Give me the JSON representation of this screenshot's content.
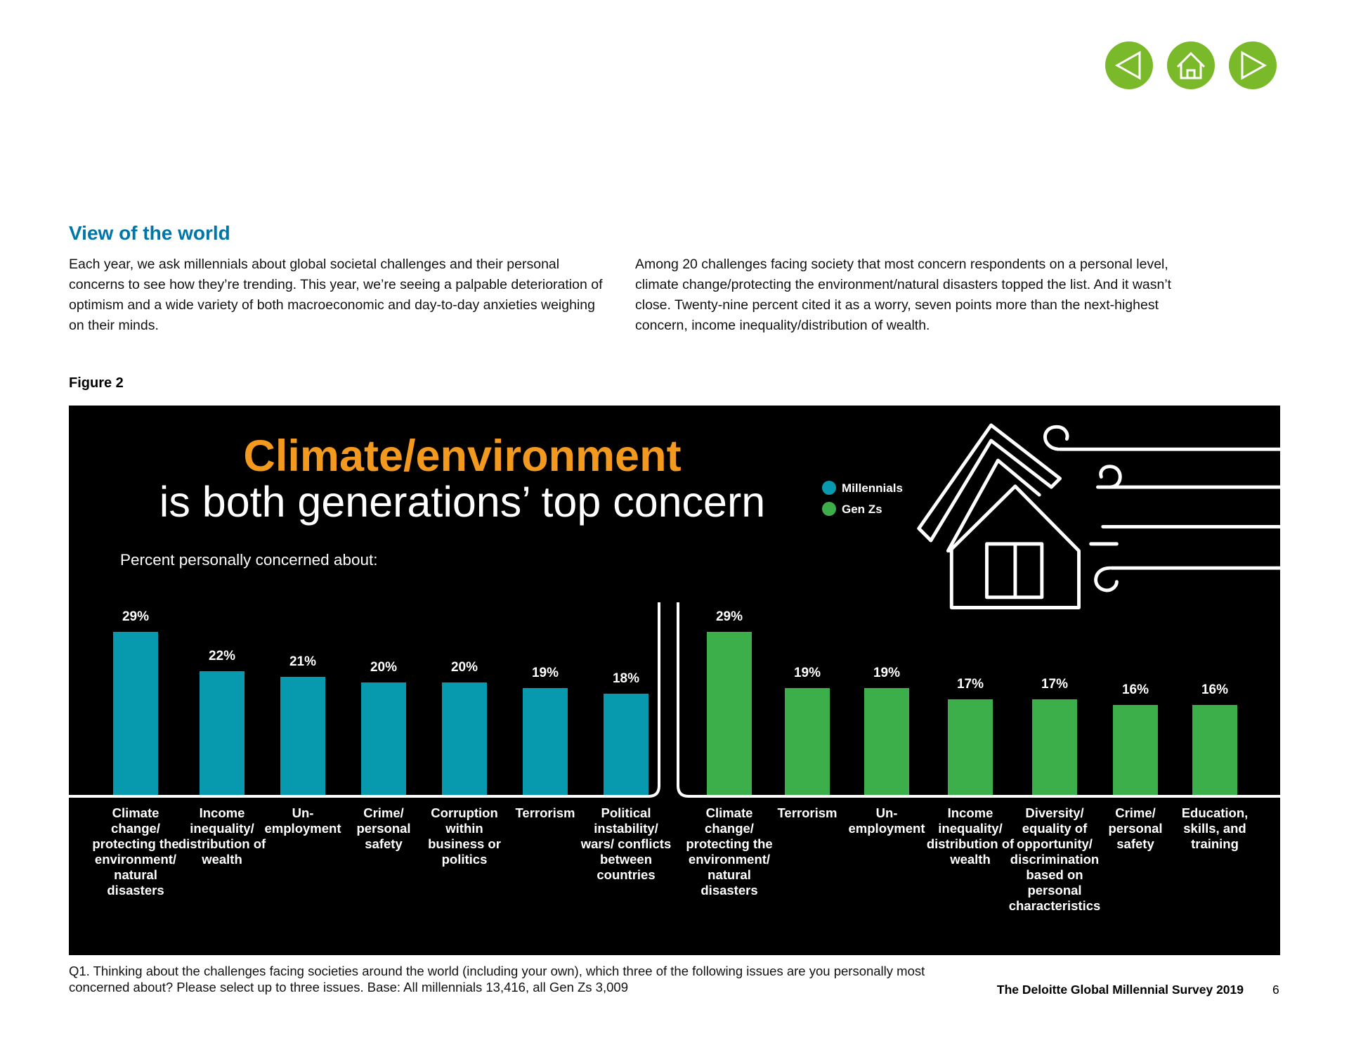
{
  "section": {
    "title": "View of the world",
    "paragraphs": [
      "Each year, we ask millennials about global societal challenges and their personal concerns to see how they’re trending. This year, we’re seeing a palpable deterioration of optimism and a wide variety of both macroeconomic and day-to-day anxieties weighing on their minds.",
      "Among 20 challenges facing society that most concern respondents on a personal level, climate change/protecting the environment/natural disasters topped the list. And it wasn’t close. Twenty-nine percent cited it as a worry, seven points more than the next-highest concern, income inequality/distribution of wealth."
    ]
  },
  "figure_label": "Figure 2",
  "chart_data": [
    {
      "type": "bar",
      "title": "Climate/environment",
      "subtitle": "is both generations’ top concern",
      "y_label": "Percent personally concerned about:",
      "categories": [
        "Climate change/ protecting the environment/ natural disasters",
        "Income inequality/ distribution of wealth",
        "Un- employment",
        "Crime/ personal safety",
        "Corruption within business or politics",
        "Terrorism",
        "Political instability/ wars/ conflicts between countries"
      ],
      "series": [
        {
          "name": "Millennials",
          "color": "#0799ae",
          "values": [
            29,
            22,
            21,
            20,
            20,
            19,
            18
          ],
          "value_labels": [
            "29%",
            "22%",
            "21%",
            "20%",
            "20%",
            "19%",
            "18%"
          ]
        }
      ]
    },
    {
      "type": "bar",
      "categories": [
        "Climate change/ protecting the environment/ natural disasters",
        "Terrorism",
        "Un- employment",
        "Income inequality/ distribution of wealth",
        "Diversity/ equality of opportunity/ discrimination based on personal characteristics",
        "Crime/ personal safety",
        "Education, skills, and training"
      ],
      "series": [
        {
          "name": "Gen Zs",
          "color": "#3daf4a",
          "values": [
            29,
            19,
            19,
            17,
            17,
            16,
            16
          ],
          "value_labels": [
            "29%",
            "19%",
            "19%",
            "17%",
            "17%",
            "16%",
            "16%"
          ]
        }
      ]
    }
  ],
  "footnote": "Q1. Thinking about the challenges facing societies around the world (including your own), which three of the following issues are you personally most concerned about? Please select up to three issues. Base: All millennials 13,416, all Gen Zs 3,009",
  "footer": {
    "publication": "The Deloitte Global Millennial Survey 2019",
    "page": 6
  }
}
